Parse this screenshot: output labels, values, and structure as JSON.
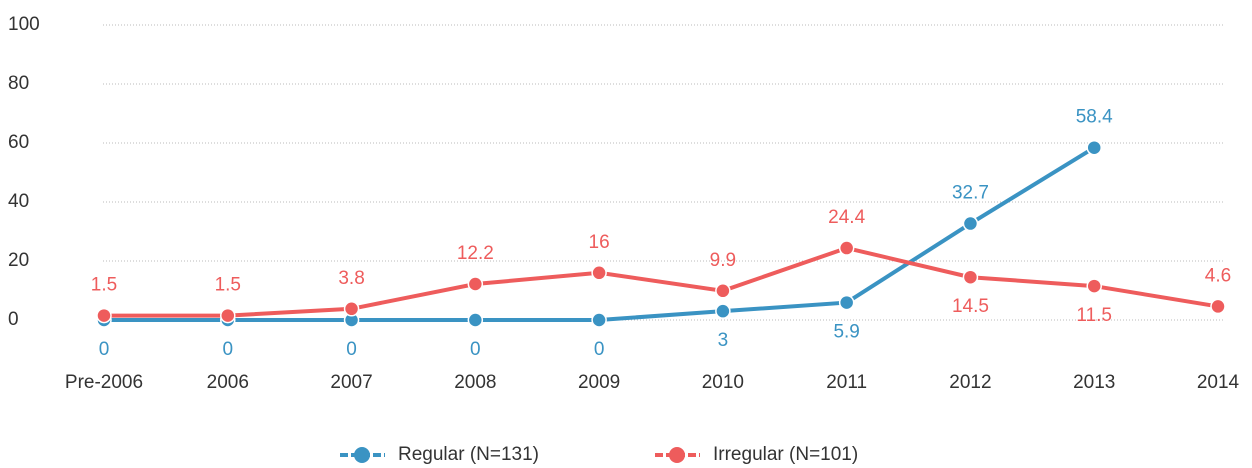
{
  "chart_data": {
    "type": "line",
    "categories": [
      "Pre-2006",
      "2006",
      "2007",
      "2008",
      "2009",
      "2010",
      "2011",
      "2012",
      "2013",
      "2014"
    ],
    "series": [
      {
        "name": "Regular (N=131)",
        "color": "#3a93c3",
        "values": [
          0,
          0,
          0,
          0,
          0,
          3,
          5.9,
          32.7,
          58.4,
          null
        ]
      },
      {
        "name": "Irregular (N=101)",
        "color": "#ee5c5c",
        "values": [
          1.5,
          1.5,
          3.8,
          12.2,
          16,
          9.9,
          24.4,
          14.5,
          11.5,
          4.6
        ]
      }
    ],
    "ylim": [
      0,
      100
    ],
    "yticks": [
      0,
      20,
      40,
      60,
      80,
      100
    ],
    "grid": true,
    "legend": "bottom"
  }
}
